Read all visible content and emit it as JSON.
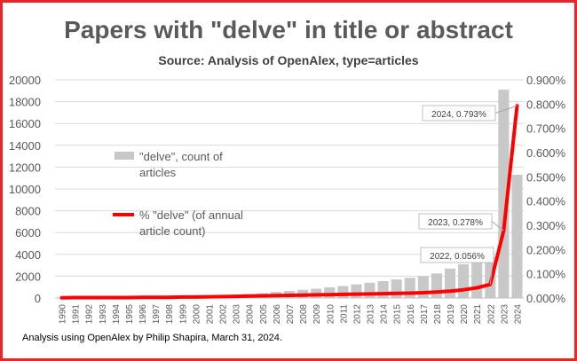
{
  "chart_data": {
    "type": "bar",
    "title": "Papers with \"delve\" in title or abstract",
    "subtitle": "Source: Analysis of OpenAlex, type=articles",
    "footnote": "Analysis using OpenAlex by Philip Shapira, March 31, 2024.",
    "categories": [
      "1990",
      "1991",
      "1992",
      "1993",
      "1994",
      "1995",
      "1996",
      "1997",
      "1998",
      "1999",
      "2000",
      "2001",
      "2002",
      "2003",
      "2004",
      "2005",
      "2006",
      "2007",
      "2008",
      "2009",
      "2010",
      "2011",
      "2012",
      "2013",
      "2014",
      "2015",
      "2016",
      "2017",
      "2018",
      "2019",
      "2020",
      "2021",
      "2022",
      "2023",
      "2024"
    ],
    "series": [
      {
        "name": "\"delve\", count of articles",
        "axis": "left",
        "type": "bar",
        "color": "#c8c8c8",
        "values": [
          20,
          40,
          50,
          60,
          60,
          70,
          90,
          110,
          130,
          160,
          200,
          230,
          260,
          300,
          360,
          430,
          560,
          650,
          750,
          850,
          980,
          1100,
          1250,
          1400,
          1550,
          1700,
          1850,
          2000,
          2250,
          2700,
          3100,
          3500,
          3800,
          19100,
          11300
        ]
      },
      {
        "name": "% \"delve\" (of annual article count)",
        "axis": "right",
        "type": "line",
        "color": "#ff0000",
        "values": [
          0.001,
          0.002,
          0.002,
          0.002,
          0.002,
          0.002,
          0.003,
          0.003,
          0.003,
          0.004,
          0.004,
          0.005,
          0.006,
          0.007,
          0.008,
          0.009,
          0.01,
          0.011,
          0.012,
          0.013,
          0.014,
          0.015,
          0.016,
          0.017,
          0.018,
          0.019,
          0.02,
          0.022,
          0.025,
          0.028,
          0.034,
          0.042,
          0.056,
          0.278,
          0.793
        ]
      }
    ],
    "y_left": {
      "min": 0,
      "max": 20000,
      "ticks": [
        "0",
        "2000",
        "4000",
        "6000",
        "8000",
        "10000",
        "12000",
        "14000",
        "16000",
        "18000",
        "20000"
      ]
    },
    "y_right": {
      "min": 0,
      "max": 0.9,
      "ticks": [
        "0.000%",
        "0.100%",
        "0.200%",
        "0.300%",
        "0.400%",
        "0.500%",
        "0.600%",
        "0.700%",
        "0.800%",
        "0.900%"
      ]
    },
    "legend": {
      "position": "inside-left",
      "bar_label_lines": [
        "\"delve\", count of",
        "articles"
      ],
      "line_label_lines": [
        "% \"delve\" (of annual",
        "article count)"
      ]
    },
    "annotations": [
      {
        "year": "2022",
        "text": "2022, 0.056%"
      },
      {
        "year": "2023",
        "text": "2023, 0.278%"
      },
      {
        "year": "2024",
        "text": "2024, 0.793%"
      }
    ],
    "grid": true
  }
}
